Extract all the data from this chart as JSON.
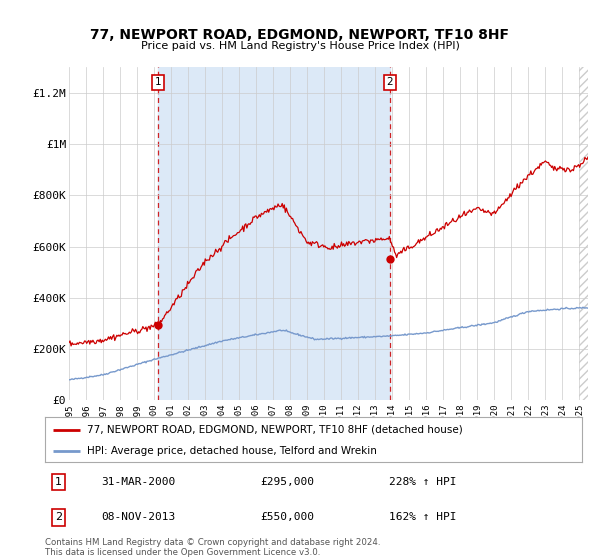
{
  "title": "77, NEWPORT ROAD, EDGMOND, NEWPORT, TF10 8HF",
  "subtitle": "Price paid vs. HM Land Registry's House Price Index (HPI)",
  "legend_label_red": "77, NEWPORT ROAD, EDGMOND, NEWPORT, TF10 8HF (detached house)",
  "legend_label_blue": "HPI: Average price, detached house, Telford and Wrekin",
  "annotation1_label": "1",
  "annotation1_date": "31-MAR-2000",
  "annotation1_price": "£295,000",
  "annotation1_hpi": "228% ↑ HPI",
  "annotation1_year": 2000.25,
  "annotation1_value": 295000,
  "annotation2_label": "2",
  "annotation2_date": "08-NOV-2013",
  "annotation2_price": "£550,000",
  "annotation2_hpi": "162% ↑ HPI",
  "annotation2_year": 2013.86,
  "annotation2_value": 550000,
  "shading_start": 2000.25,
  "shading_end": 2013.86,
  "ylim": [
    0,
    1300000
  ],
  "xlim_start": 1995.0,
  "xlim_end": 2025.5,
  "red_color": "#cc0000",
  "blue_color": "#7799cc",
  "shade_color": "#dce9f7",
  "background_color": "#ffffff",
  "grid_color": "#cccccc",
  "hatch_color": "#cccccc",
  "footer_text": "Contains HM Land Registry data © Crown copyright and database right 2024.\nThis data is licensed under the Open Government Licence v3.0.",
  "ytick_labels": [
    "£0",
    "£200K",
    "£400K",
    "£600K",
    "£800K",
    "£1M",
    "£1.2M"
  ],
  "ytick_values": [
    0,
    200000,
    400000,
    600000,
    800000,
    1000000,
    1200000
  ],
  "xtick_years": [
    1995,
    1996,
    1997,
    1998,
    1999,
    2000,
    2001,
    2002,
    2003,
    2004,
    2005,
    2006,
    2007,
    2008,
    2009,
    2010,
    2011,
    2012,
    2013,
    2014,
    2015,
    2016,
    2017,
    2018,
    2019,
    2020,
    2021,
    2022,
    2023,
    2024,
    2025
  ]
}
